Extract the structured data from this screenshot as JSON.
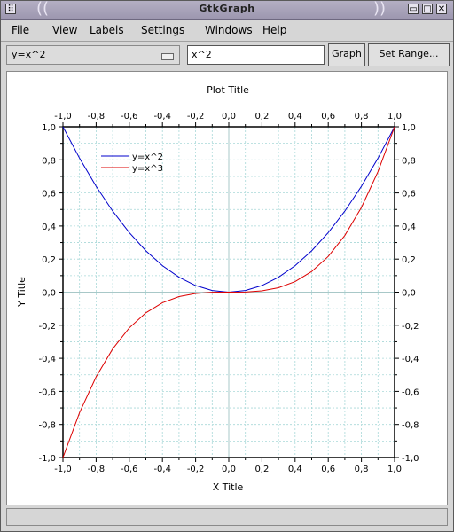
{
  "window": {
    "title": "GtkGraph",
    "buttons": [
      "▭",
      "□",
      "✕"
    ]
  },
  "menu": {
    "items": [
      "File",
      "View",
      "Labels",
      "Settings",
      "Windows",
      "Help"
    ]
  },
  "toolbar": {
    "function_select": "y=x^2",
    "expression_value": "x^2",
    "graph_label": "Graph",
    "set_range_label": "Set Range..."
  },
  "chart_data": {
    "type": "line",
    "title": "Plot Title",
    "xlabel": "X Title",
    "ylabel": "Y Title",
    "xlim": [
      -1.0,
      1.0
    ],
    "ylim": [
      -1.0,
      1.0
    ],
    "ticks": [
      "-1,0",
      "-0,8",
      "-0,6",
      "-0,4",
      "-0,2",
      "0,0",
      "0,2",
      "0,4",
      "0,6",
      "0,8",
      "1,0"
    ],
    "tick_values": [
      -1.0,
      -0.8,
      -0.6,
      -0.4,
      -0.2,
      0.0,
      0.2,
      0.4,
      0.6,
      0.8,
      1.0
    ],
    "grid": true,
    "legend_position": "top-left",
    "x": [
      -1.0,
      -0.9,
      -0.8,
      -0.7,
      -0.6,
      -0.5,
      -0.4,
      -0.3,
      -0.2,
      -0.1,
      0.0,
      0.1,
      0.2,
      0.3,
      0.4,
      0.5,
      0.6,
      0.7,
      0.8,
      0.9,
      1.0
    ],
    "series": [
      {
        "name": "y=x^2",
        "color": "#0000cc",
        "values": [
          1.0,
          0.81,
          0.64,
          0.49,
          0.36,
          0.25,
          0.16,
          0.09,
          0.04,
          0.01,
          0.0,
          0.01,
          0.04,
          0.09,
          0.16,
          0.25,
          0.36,
          0.49,
          0.64,
          0.81,
          1.0
        ]
      },
      {
        "name": "y=x^3",
        "color": "#dd0000",
        "values": [
          -1.0,
          -0.729,
          -0.512,
          -0.343,
          -0.216,
          -0.125,
          -0.064,
          -0.027,
          -0.008,
          -0.001,
          0.0,
          0.001,
          0.008,
          0.027,
          0.064,
          0.125,
          0.216,
          0.343,
          0.512,
          0.729,
          1.0
        ]
      }
    ]
  }
}
